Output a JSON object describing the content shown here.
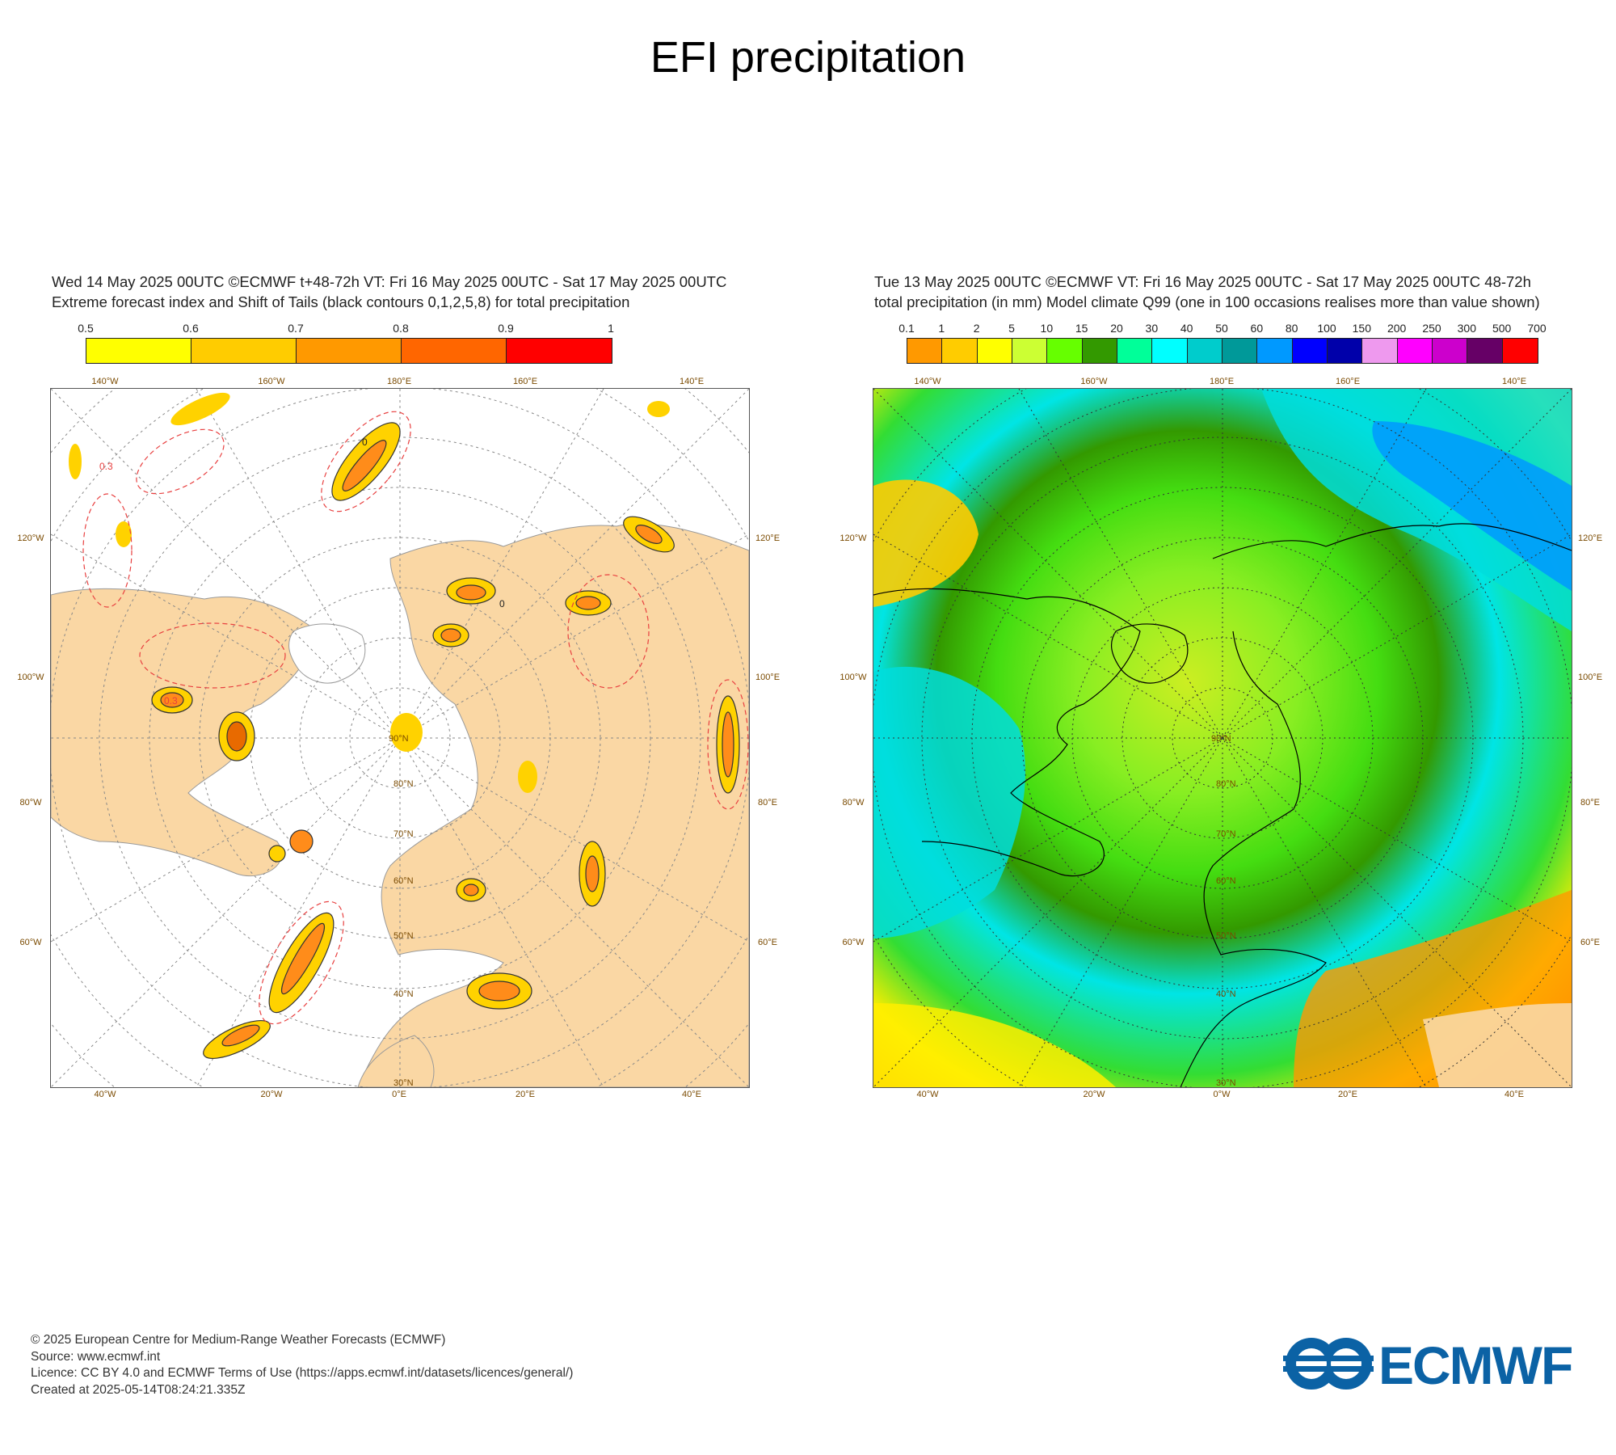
{
  "page": {
    "title": "EFI precipitation"
  },
  "left_panel": {
    "title_line1": "Wed 14 May 2025 00UTC ©ECMWF t+48-72h  VT: Fri 16 May 2025 00UTC - Sat 17 May 2025 00UTC",
    "title_line2": "Extreme forecast index and Shift of Tails (black contours 0,1,2,5,8) for total precipitation",
    "colorbar": {
      "ticks": [
        "0.5",
        "0.6",
        "0.7",
        "0.8",
        "0.9",
        "1"
      ],
      "colors": [
        "#ffff00",
        "#ffcc00",
        "#ff9900",
        "#ff6600",
        "#ff0000"
      ]
    },
    "lon_labels_top": [
      "140°W",
      "160°W",
      "180°E",
      "160°E",
      "140°E"
    ],
    "lon_labels_bottom": [
      "40°W",
      "20°W",
      "0°E",
      "20°E",
      "40°E"
    ],
    "side_labels_left": [
      "120°W",
      "100°W",
      "80°W",
      "60°W"
    ],
    "side_labels_right": [
      "120°E",
      "100°E",
      "80°E",
      "60°E"
    ],
    "lat_labels": [
      "30°N",
      "40°N",
      "50°N",
      "60°N",
      "70°N",
      "80°N",
      "90°N"
    ],
    "contour_labels": [
      "0.3",
      "0"
    ]
  },
  "right_panel": {
    "title_line1": "Tue 13 May 2025 00UTC ©ECMWF VT: Fri 16 May 2025 00UTC - Sat 17 May 2025 00UTC    48-72h",
    "title_line2": "total precipitation (in mm)  Model climate Q99 (one in 100 occasions realises more than value shown)",
    "colorbar": {
      "ticks": [
        "0.1",
        "1",
        "2",
        "5",
        "10",
        "15",
        "20",
        "30",
        "40",
        "50",
        "60",
        "80",
        "100",
        "150",
        "200",
        "250",
        "300",
        "500",
        "700"
      ],
      "colors": [
        "#ff9900",
        "#ffcc00",
        "#ffff00",
        "#ccff33",
        "#66ff00",
        "#339900",
        "#00ff99",
        "#00ffff",
        "#00cccc",
        "#009999",
        "#0099ff",
        "#0000ff",
        "#0000aa",
        "#ee99ee",
        "#ff00ff",
        "#cc00cc",
        "#660066",
        "#ff0000"
      ]
    },
    "lon_labels_top": [
      "140°W",
      "160°W",
      "180°E",
      "160°E",
      "140°E"
    ],
    "lon_labels_bottom": [
      "40°W",
      "20°W",
      "0°W",
      "20°E",
      "40°E"
    ],
    "side_labels_left": [
      "120°W",
      "100°W",
      "80°W",
      "60°W"
    ],
    "side_labels_right": [
      "120°E",
      "100°E",
      "80°E",
      "60°E"
    ],
    "lat_labels": [
      "30°N",
      "40°N",
      "50°N",
      "60°N",
      "70°N",
      "80°N",
      "90°N"
    ]
  },
  "footer": {
    "line1": "© 2025 European Centre for Medium-Range Weather Forecasts (ECMWF)",
    "line2": "Source: www.ecmwf.int",
    "line3": "Licence: CC BY 4.0 and ECMWF Terms of Use (https://apps.ecmwf.int/datasets/licences/general/)",
    "line4": "Created at 2025-05-14T08:24:21.335Z"
  },
  "logo": {
    "text": "ECMWF",
    "color": "#0b62a5"
  }
}
